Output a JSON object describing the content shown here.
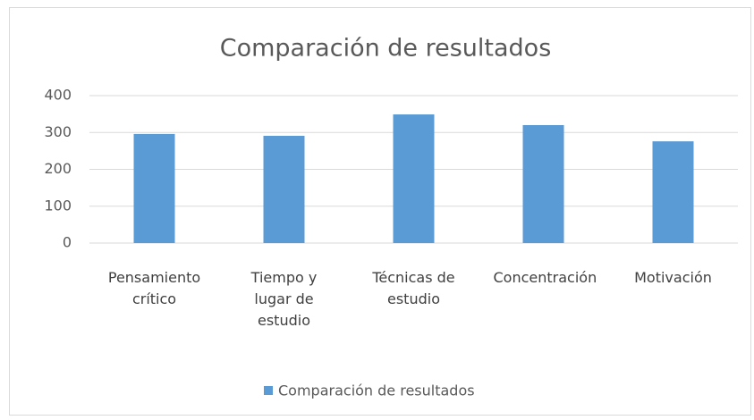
{
  "chart_data": {
    "type": "bar",
    "title": "Comparación de resultados",
    "categories": [
      "Pensamiento crítico",
      "Tiempo y lugar de estudio",
      "Técnicas de estudio",
      "Concentración",
      "Motivación"
    ],
    "series": [
      {
        "name": "Comparación de resultados",
        "color": "#5b9bd5",
        "values": [
          296,
          291,
          349,
          320,
          276
        ]
      }
    ],
    "ylim": [
      0,
      400
    ],
    "yticks": [
      0,
      100,
      200,
      300,
      400
    ],
    "grid": true,
    "legend": "bottom"
  }
}
